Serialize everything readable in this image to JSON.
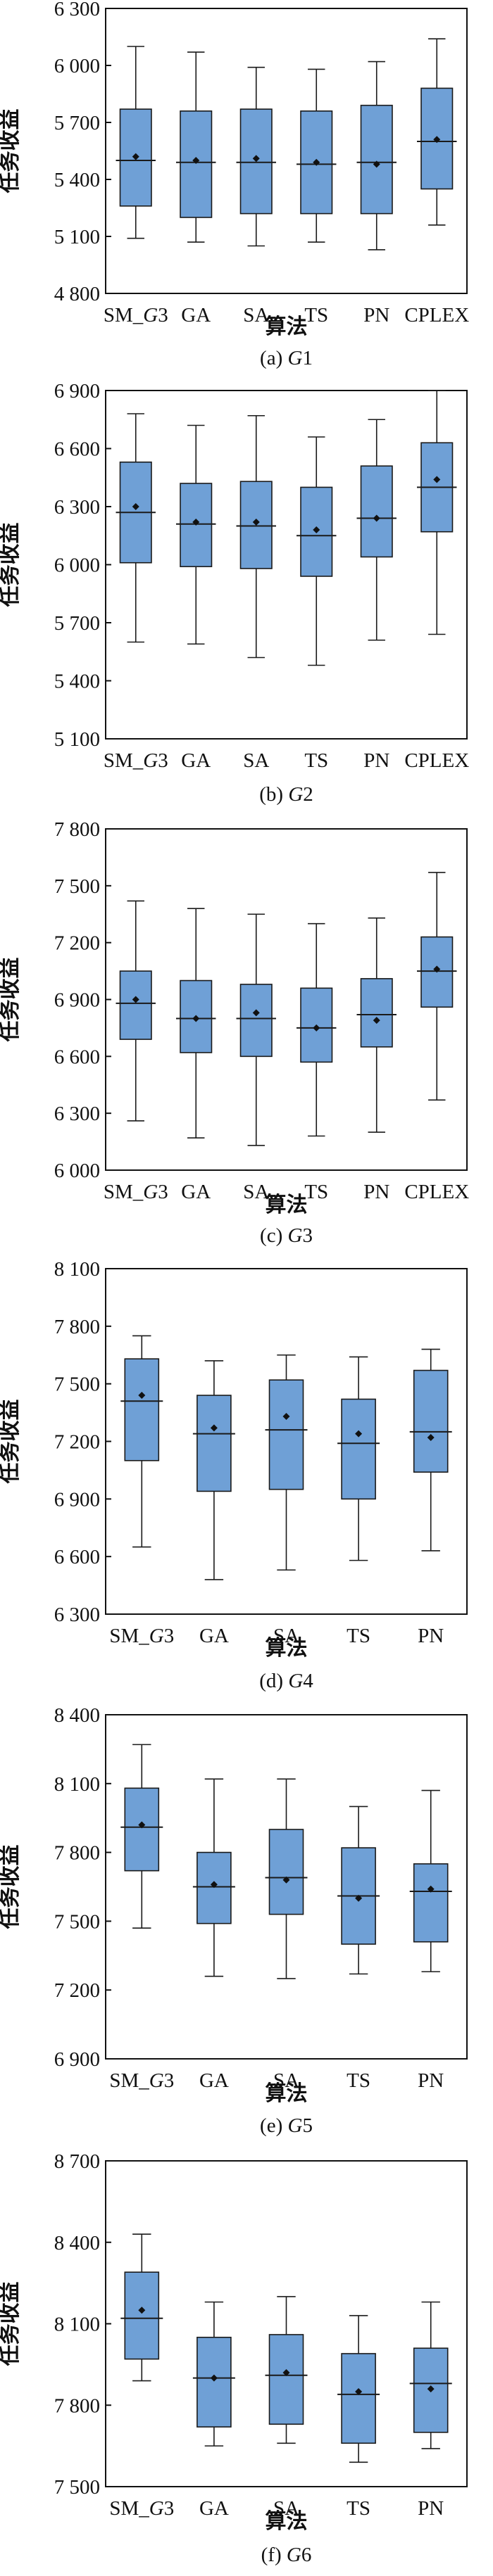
{
  "figure": {
    "box_color": "#6fa0d6",
    "box_stroke": "#1a1a1a",
    "mean_marker_color": "#111111"
  },
  "chart_data": [
    {
      "type": "boxplot",
      "caption": "(a) G1",
      "caption_prefix": "(a) ",
      "caption_italic": "G",
      "caption_suffix": "1",
      "xlabel": "算法",
      "ylabel": "任务收益",
      "ylim": [
        4800,
        6300
      ],
      "yticks": [
        4800,
        5100,
        5400,
        5700,
        6000,
        6300
      ],
      "ytick_labels": [
        "4 800",
        "5 100",
        "5 400",
        "5 700",
        "6 000",
        "6 300"
      ],
      "categories": [
        "SM_G3",
        "GA",
        "SA",
        "TS",
        "PN",
        "CPLEX"
      ],
      "category_labels": [
        {
          "pre": "SM_",
          "it": "G",
          "post": "3"
        },
        {
          "pre": "GA",
          "it": "",
          "post": ""
        },
        {
          "pre": "SA",
          "it": "",
          "post": ""
        },
        {
          "pre": "TS",
          "it": "",
          "post": ""
        },
        {
          "pre": "PN",
          "it": "",
          "post": ""
        },
        {
          "pre": "CPLEX",
          "it": "",
          "post": ""
        }
      ],
      "boxes": [
        {
          "min": 5090,
          "q1": 5260,
          "median": 5500,
          "q3": 5770,
          "max": 6100,
          "mean": 5520
        },
        {
          "min": 5070,
          "q1": 5200,
          "median": 5490,
          "q3": 5760,
          "max": 6070,
          "mean": 5500
        },
        {
          "min": 5050,
          "q1": 5220,
          "median": 5490,
          "q3": 5770,
          "max": 5990,
          "mean": 5510
        },
        {
          "min": 5070,
          "q1": 5220,
          "median": 5480,
          "q3": 5760,
          "max": 5980,
          "mean": 5490
        },
        {
          "min": 5030,
          "q1": 5220,
          "median": 5490,
          "q3": 5790,
          "max": 6020,
          "mean": 5480
        },
        {
          "min": 5160,
          "q1": 5350,
          "median": 5600,
          "q3": 5880,
          "max": 6140,
          "mean": 5610
        }
      ]
    },
    {
      "type": "boxplot",
      "caption": "(b) G2",
      "caption_prefix": "(b) ",
      "caption_italic": "G",
      "caption_suffix": "2",
      "xlabel": "",
      "ylabel": "任务收益",
      "ylim": [
        5100,
        6900
      ],
      "yticks": [
        5100,
        5400,
        5700,
        6000,
        6300,
        6600,
        6900
      ],
      "ytick_labels": [
        "5 100",
        "5 400",
        "5 700",
        "6 000",
        "6 300",
        "6 600",
        "6 900"
      ],
      "categories": [
        "SM_G3",
        "GA",
        "SA",
        "TS",
        "PN",
        "CPLEX"
      ],
      "category_labels": [
        {
          "pre": "SM_",
          "it": "G",
          "post": "3"
        },
        {
          "pre": "GA",
          "it": "",
          "post": ""
        },
        {
          "pre": "SA",
          "it": "",
          "post": ""
        },
        {
          "pre": "TS",
          "it": "",
          "post": ""
        },
        {
          "pre": "PN",
          "it": "",
          "post": ""
        },
        {
          "pre": "CPLEX",
          "it": "",
          "post": ""
        }
      ],
      "boxes": [
        {
          "min": 5600,
          "q1": 6010,
          "median": 6270,
          "q3": 6530,
          "max": 6780,
          "mean": 6300
        },
        {
          "min": 5590,
          "q1": 5990,
          "median": 6210,
          "q3": 6420,
          "max": 6720,
          "mean": 6220
        },
        {
          "min": 5520,
          "q1": 5980,
          "median": 6200,
          "q3": 6430,
          "max": 6770,
          "mean": 6220
        },
        {
          "min": 5480,
          "q1": 5940,
          "median": 6150,
          "q3": 6400,
          "max": 6660,
          "mean": 6180
        },
        {
          "min": 5610,
          "q1": 6040,
          "median": 6240,
          "q3": 6510,
          "max": 6750,
          "mean": 6240
        },
        {
          "min": 5640,
          "q1": 6170,
          "median": 6400,
          "q3": 6630,
          "max": 6900,
          "mean": 6440
        }
      ]
    },
    {
      "type": "boxplot",
      "caption": "(c) G3",
      "caption_prefix": "(c) ",
      "caption_italic": "G",
      "caption_suffix": "3",
      "xlabel": "算法",
      "ylabel": "任务收益",
      "ylim": [
        6000,
        7800
      ],
      "yticks": [
        6000,
        6300,
        6600,
        6900,
        7200,
        7500,
        7800
      ],
      "ytick_labels": [
        "6 000",
        "6 300",
        "6 600",
        "6 900",
        "7 200",
        "7 500",
        "7 800"
      ],
      "categories": [
        "SM_G3",
        "GA",
        "SA",
        "TS",
        "PN",
        "CPLEX"
      ],
      "category_labels": [
        {
          "pre": "SM_",
          "it": "G",
          "post": "3"
        },
        {
          "pre": "GA",
          "it": "",
          "post": ""
        },
        {
          "pre": "SA",
          "it": "",
          "post": ""
        },
        {
          "pre": "TS",
          "it": "",
          "post": ""
        },
        {
          "pre": "PN",
          "it": "",
          "post": ""
        },
        {
          "pre": "CPLEX",
          "it": "",
          "post": ""
        }
      ],
      "boxes": [
        {
          "min": 6260,
          "q1": 6690,
          "median": 6880,
          "q3": 7050,
          "max": 7420,
          "mean": 6900
        },
        {
          "min": 6170,
          "q1": 6620,
          "median": 6800,
          "q3": 7000,
          "max": 7380,
          "mean": 6800
        },
        {
          "min": 6130,
          "q1": 6600,
          "median": 6800,
          "q3": 6980,
          "max": 7350,
          "mean": 6830
        },
        {
          "min": 6180,
          "q1": 6570,
          "median": 6750,
          "q3": 6960,
          "max": 7300,
          "mean": 6750
        },
        {
          "min": 6200,
          "q1": 6650,
          "median": 6820,
          "q3": 7010,
          "max": 7330,
          "mean": 6790
        },
        {
          "min": 6370,
          "q1": 6860,
          "median": 7050,
          "q3": 7230,
          "max": 7570,
          "mean": 7060
        }
      ]
    },
    {
      "type": "boxplot",
      "caption": "(d) G4",
      "caption_prefix": "(d) ",
      "caption_italic": "G",
      "caption_suffix": "4",
      "xlabel": "算法",
      "ylabel": "任务收益",
      "ylim": [
        6300,
        8100
      ],
      "yticks": [
        6300,
        6600,
        6900,
        7200,
        7500,
        7800,
        8100
      ],
      "ytick_labels": [
        "6 300",
        "6 600",
        "6 900",
        "7 200",
        "7 500",
        "7 800",
        "8 100"
      ],
      "categories": [
        "SM_G3",
        "GA",
        "SA",
        "TS",
        "PN"
      ],
      "category_labels": [
        {
          "pre": "SM_",
          "it": "G",
          "post": "3"
        },
        {
          "pre": "GA",
          "it": "",
          "post": ""
        },
        {
          "pre": "SA",
          "it": "",
          "post": ""
        },
        {
          "pre": "TS",
          "it": "",
          "post": ""
        },
        {
          "pre": "PN",
          "it": "",
          "post": ""
        }
      ],
      "boxes": [
        {
          "min": 6650,
          "q1": 7100,
          "median": 7410,
          "q3": 7630,
          "max": 7750,
          "mean": 7440
        },
        {
          "min": 6480,
          "q1": 6940,
          "median": 7240,
          "q3": 7440,
          "max": 7620,
          "mean": 7270
        },
        {
          "min": 6530,
          "q1": 6950,
          "median": 7260,
          "q3": 7520,
          "max": 7650,
          "mean": 7330
        },
        {
          "min": 6580,
          "q1": 6900,
          "median": 7190,
          "q3": 7420,
          "max": 7640,
          "mean": 7240
        },
        {
          "min": 6630,
          "q1": 7040,
          "median": 7250,
          "q3": 7570,
          "max": 7680,
          "mean": 7220
        }
      ]
    },
    {
      "type": "boxplot",
      "caption": "(e) G5",
      "caption_prefix": "(e) ",
      "caption_italic": "G",
      "caption_suffix": "5",
      "xlabel": "算法",
      "ylabel": "任务收益",
      "ylim": [
        6900,
        8400
      ],
      "yticks": [
        6900,
        7200,
        7500,
        7800,
        8100,
        8400
      ],
      "ytick_labels": [
        "6 900",
        "7 200",
        "7 500",
        "7 800",
        "8 100",
        "8 400"
      ],
      "categories": [
        "SM_G3",
        "GA",
        "SA",
        "TS",
        "PN"
      ],
      "category_labels": [
        {
          "pre": "SM_",
          "it": "G",
          "post": "3"
        },
        {
          "pre": "GA",
          "it": "",
          "post": ""
        },
        {
          "pre": "SA",
          "it": "",
          "post": ""
        },
        {
          "pre": "TS",
          "it": "",
          "post": ""
        },
        {
          "pre": "PN",
          "it": "",
          "post": ""
        }
      ],
      "boxes": [
        {
          "min": 7470,
          "q1": 7720,
          "median": 7910,
          "q3": 8080,
          "max": 8270,
          "mean": 7920
        },
        {
          "min": 7260,
          "q1": 7490,
          "median": 7650,
          "q3": 7800,
          "max": 8120,
          "mean": 7660
        },
        {
          "min": 7250,
          "q1": 7530,
          "median": 7690,
          "q3": 7900,
          "max": 8120,
          "mean": 7680
        },
        {
          "min": 7270,
          "q1": 7400,
          "median": 7610,
          "q3": 7820,
          "max": 8000,
          "mean": 7600
        },
        {
          "min": 7280,
          "q1": 7410,
          "median": 7630,
          "q3": 7750,
          "max": 8070,
          "mean": 7640
        }
      ]
    },
    {
      "type": "boxplot",
      "caption": "(f) G6",
      "caption_prefix": "(f) ",
      "caption_italic": "G",
      "caption_suffix": "6",
      "xlabel": "算法",
      "ylabel": "任务收益",
      "ylim": [
        7500,
        8700
      ],
      "yticks": [
        7500,
        7800,
        8100,
        8400,
        8700
      ],
      "ytick_labels": [
        "7 500",
        "7 800",
        "8 100",
        "8 400",
        "8 700"
      ],
      "categories": [
        "SM_G3",
        "GA",
        "SA",
        "TS",
        "PN"
      ],
      "category_labels": [
        {
          "pre": "SM_",
          "it": "G",
          "post": "3"
        },
        {
          "pre": "GA",
          "it": "",
          "post": ""
        },
        {
          "pre": "SA",
          "it": "",
          "post": ""
        },
        {
          "pre": "TS",
          "it": "",
          "post": ""
        },
        {
          "pre": "PN",
          "it": "",
          "post": ""
        }
      ],
      "boxes": [
        {
          "min": 7890,
          "q1": 7970,
          "median": 8120,
          "q3": 8290,
          "max": 8430,
          "mean": 8150
        },
        {
          "min": 7650,
          "q1": 7720,
          "median": 7900,
          "q3": 8050,
          "max": 8180,
          "mean": 7900
        },
        {
          "min": 7660,
          "q1": 7730,
          "median": 7910,
          "q3": 8060,
          "max": 8200,
          "mean": 7920
        },
        {
          "min": 7590,
          "q1": 7660,
          "median": 7840,
          "q3": 7990,
          "max": 8130,
          "mean": 7850
        },
        {
          "min": 7640,
          "q1": 7700,
          "median": 7880,
          "q3": 8010,
          "max": 8180,
          "mean": 7860
        }
      ]
    }
  ]
}
